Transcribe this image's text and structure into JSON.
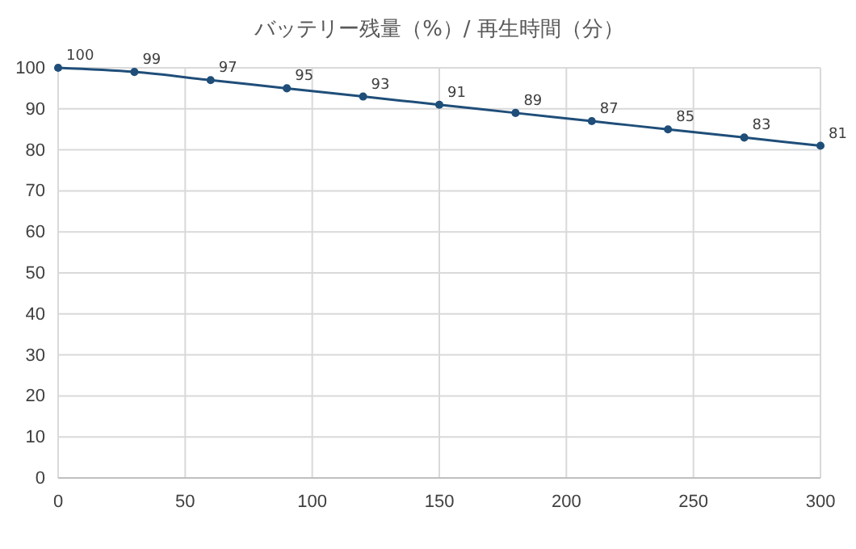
{
  "chart_data": {
    "type": "line",
    "title": "バッテリー残量（%）/ 再生時間（分）",
    "x": [
      0,
      30,
      60,
      90,
      120,
      150,
      180,
      210,
      240,
      270,
      300
    ],
    "series": [
      {
        "color": "#1f4e79",
        "values": [
          100,
          99,
          97,
          95,
          93,
          91,
          89,
          87,
          85,
          83,
          81
        ]
      }
    ],
    "xlim": [
      0,
      300
    ],
    "xticks": [
      0,
      50,
      100,
      150,
      200,
      250,
      300
    ],
    "ylim": [
      0,
      100
    ],
    "yticks": [
      0,
      10,
      20,
      30,
      40,
      50,
      60,
      70,
      80,
      90,
      100
    ],
    "grid": true,
    "marker": "circle",
    "data_labels": true,
    "line_style": "solid"
  }
}
